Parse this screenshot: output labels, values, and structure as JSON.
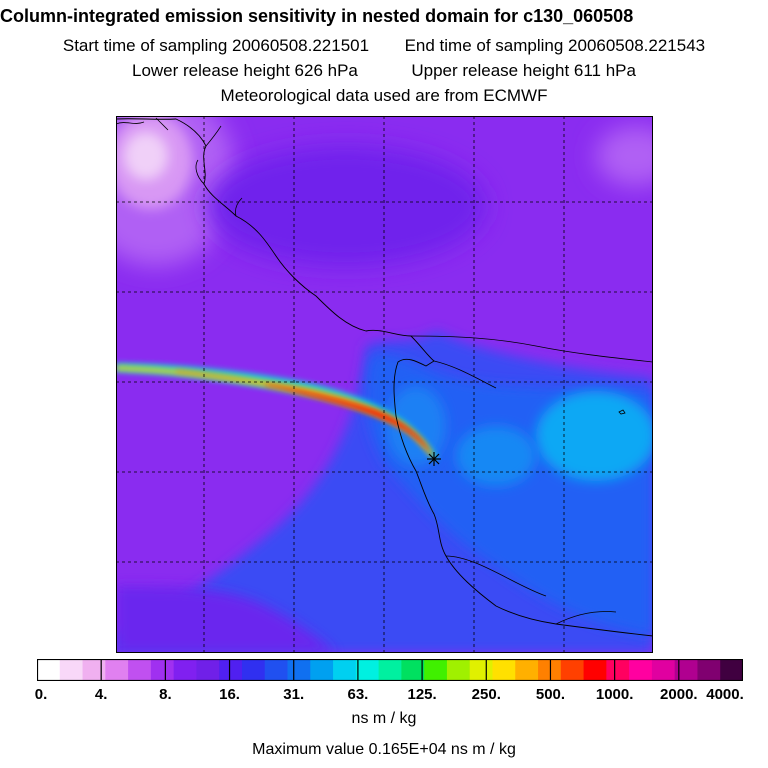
{
  "header": {
    "title": "Column-integrated emission sensitivity in nested domain for c130_060508",
    "start_label": "Start time of sampling 20060508.221501",
    "end_label": "End time of sampling 20060508.221543",
    "lower_label": "Lower release height  626 hPa",
    "upper_label": "Upper release height  611 hPa",
    "met_label": "Meteorological data used are from ECMWF"
  },
  "colorbar": {
    "ticks": [
      "0.",
      "4.",
      "8.",
      "16.",
      "31.",
      "63.",
      "125.",
      "250.",
      "500.",
      "1000.",
      "2000.",
      "4000."
    ],
    "colors": [
      "#ffffff",
      "#f8d8f8",
      "#f0b0f0",
      "#e080f0",
      "#c050f0",
      "#a030f0",
      "#8020f0",
      "#7020e8",
      "#5020f0",
      "#3030f0",
      "#2050f0",
      "#1070f0",
      "#00a0f0",
      "#00d0f0",
      "#00f0e0",
      "#00f0a0",
      "#00e060",
      "#40f000",
      "#a0f000",
      "#e0f000",
      "#ffe000",
      "#ffb000",
      "#ff8000",
      "#ff4000",
      "#ff0000",
      "#ff0060",
      "#ff00a0",
      "#e000a0",
      "#b00090",
      "#800070",
      "#400040"
    ],
    "units": "ns m / kg"
  },
  "max_value": "Maximum value  0.165E+04 ns m / kg",
  "map": {
    "colors": {
      "background": "#8a2cf0",
      "low_pink": "#e8b8f4",
      "blue_region": "#2f5cf4",
      "cyan_region": "#1aa4f4",
      "plume_yellow": "#ffd000",
      "plume_orange": "#ff7a00",
      "plume_red": "#ff1a00"
    },
    "release_marker": "release-point-star"
  }
}
